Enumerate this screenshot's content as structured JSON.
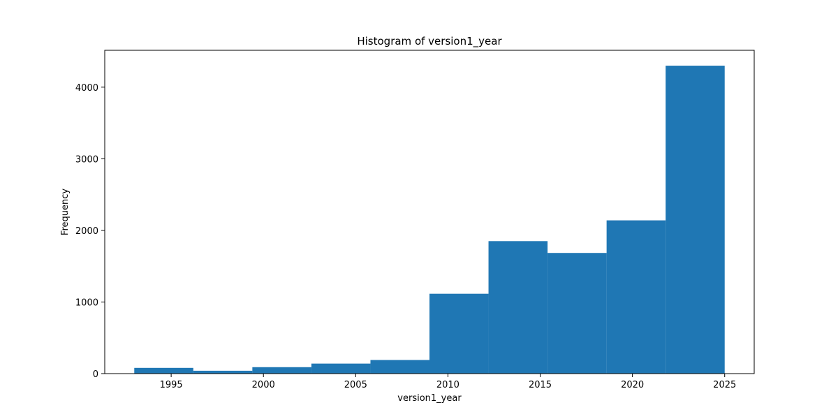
{
  "chart_data": {
    "type": "bar",
    "title": "Histogram of version1_year",
    "xlabel": "version1_year",
    "ylabel": "Frequency",
    "bins": [
      {
        "start": 1993.0,
        "end": 1996.2,
        "value": 80
      },
      {
        "start": 1996.2,
        "end": 1999.4,
        "value": 40
      },
      {
        "start": 1999.4,
        "end": 2002.6,
        "value": 90
      },
      {
        "start": 2002.6,
        "end": 2005.8,
        "value": 140
      },
      {
        "start": 2005.8,
        "end": 2009.0,
        "value": 190
      },
      {
        "start": 2009.0,
        "end": 2012.2,
        "value": 1115
      },
      {
        "start": 2012.2,
        "end": 2015.4,
        "value": 1850
      },
      {
        "start": 2015.4,
        "end": 2018.6,
        "value": 1685
      },
      {
        "start": 2018.6,
        "end": 2021.8,
        "value": 2140
      },
      {
        "start": 2021.8,
        "end": 2025.0,
        "value": 4300
      }
    ],
    "xlim": [
      1991.4,
      2026.6
    ],
    "ylim": [
      0,
      4515
    ],
    "xticks": [
      1995,
      2000,
      2005,
      2010,
      2015,
      2020,
      2025
    ],
    "yticks": [
      0,
      1000,
      2000,
      3000,
      4000
    ],
    "grid": false,
    "bar_color": "#1f77b4"
  }
}
